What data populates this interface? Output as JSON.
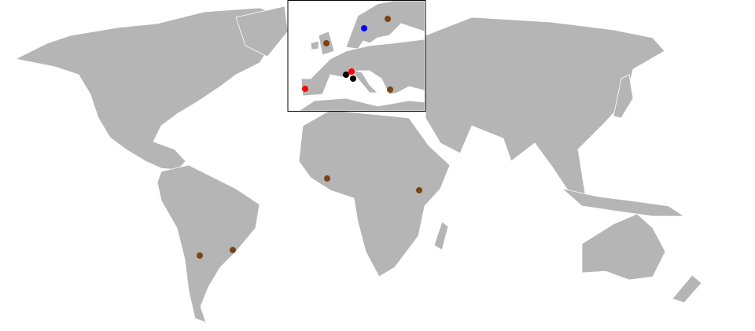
{
  "map": {
    "land_color": "#b5b5b5",
    "border_color": "#ffffff",
    "background": "#ffffff",
    "inset_region": "Europe",
    "markers": [
      {
        "region": "world",
        "color": "#7a4413"
      },
      {
        "region": "world",
        "color": "#7a4413"
      },
      {
        "region": "world",
        "color": "#7a4413"
      },
      {
        "region": "world",
        "color": "#7a4413"
      },
      {
        "region": "inset",
        "color": "#0000ff"
      },
      {
        "region": "inset",
        "color": "#7a4413"
      },
      {
        "region": "inset",
        "color": "#7a4413"
      },
      {
        "region": "inset",
        "color": "#7a4413"
      },
      {
        "region": "inset",
        "color": "#ff0000"
      },
      {
        "region": "inset",
        "color": "#ff0000"
      },
      {
        "region": "inset",
        "color": "#000000"
      },
      {
        "region": "inset",
        "color": "#000000"
      }
    ]
  }
}
